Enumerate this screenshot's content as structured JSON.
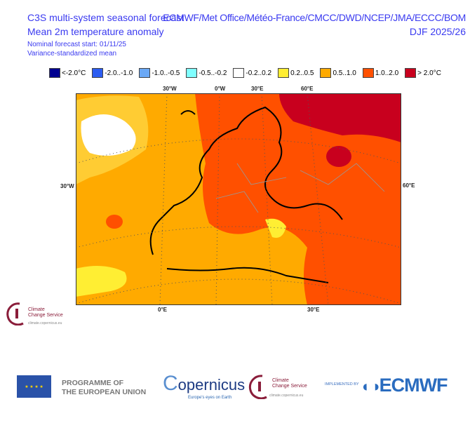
{
  "header": {
    "title": "C3S multi-system seasonal forecast",
    "subtitle": "Mean 2m temperature anomaly",
    "forecast_start": "Nominal forecast start: 01/11/25",
    "method": "Variance-standardized mean",
    "systems": "ECMWF/Met Office/Météo-France/CMCC/DWD/NCEP/JMA/ECCC/BOM",
    "season": "DJF 2025/26"
  },
  "legend": [
    {
      "label": "<-2.0°C",
      "color": "#000090"
    },
    {
      "label": "-2.0..-1.0",
      "color": "#2b5cf0"
    },
    {
      "label": "-1.0..-0.5",
      "color": "#6aa8f5"
    },
    {
      "label": "-0.5..-0.2",
      "color": "#80ffff"
    },
    {
      "label": "-0.2..0.2",
      "color": "#ffffff"
    },
    {
      "label": "0.2..0.5",
      "color": "#ffee33"
    },
    {
      "label": "0.5..1.0",
      "color": "#ffaa00"
    },
    {
      "label": "1.0..2.0",
      "color": "#ff5000"
    },
    {
      "label": "> 2.0°C",
      "color": "#c8001e"
    }
  ],
  "map": {
    "top_labels": [
      "30°W",
      "0°W",
      "30°E",
      "60°E"
    ],
    "left_label": "30°W",
    "right_label": "60°E",
    "bottom_labels": [
      "0°E",
      "30°E"
    ]
  },
  "logos": {
    "c3s_small": {
      "line1": "Climate",
      "line2": "Change Service",
      "url": "climate.copernicus.eu"
    },
    "eu": "PROGRAMME OF",
    "eu2": "THE EUROPEAN UNION",
    "copernicus": "opernicus",
    "copernicus_c": "C",
    "copernicus_tag": "Europe's eyes on Earth",
    "c3s": {
      "line1": "Climate",
      "line2": "Change Service",
      "url": "climate.copernicus.eu"
    },
    "implemented_by": "IMPLEMENTED BY",
    "ecmwf": "ECMWF"
  }
}
